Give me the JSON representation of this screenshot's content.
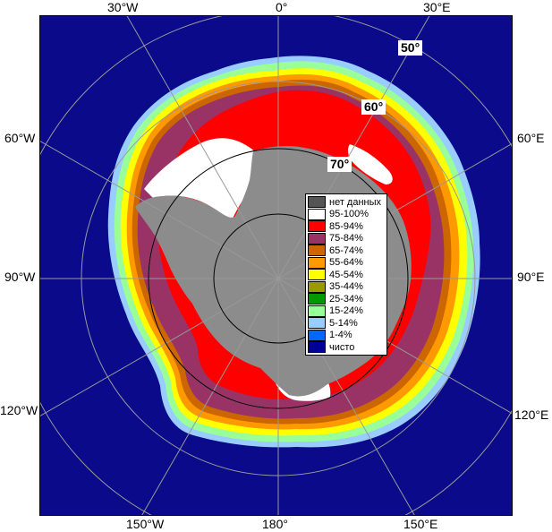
{
  "colors": {
    "ocean": "#0a0a8a",
    "land": "#8c8c8c",
    "grid": "#999999",
    "legend": [
      "#555555",
      "#ffffff",
      "#ff0000",
      "#993366",
      "#cc6600",
      "#ff9900",
      "#ffff00",
      "#999900",
      "#009900",
      "#99ff99",
      "#99ccff",
      "#0066ff",
      "#000099"
    ]
  },
  "longitude_labels": {
    "top_30w": "30°W",
    "top_0": "0°",
    "top_30e": "30°E",
    "left_60w": "60°W",
    "left_90w": "90°W",
    "left_120w": "120°W",
    "right_60e": "60°E",
    "right_90e": "90°E",
    "right_120e": "120°E",
    "bottom_150w": "150°W",
    "bottom_180": "180°",
    "bottom_150e": "150°E"
  },
  "latitude_labels": {
    "lat50": "50°",
    "lat60": "60°",
    "lat70": "70°"
  },
  "legend": {
    "items": [
      {
        "label": "нет данных",
        "color": "#555555"
      },
      {
        "label": "95-100%",
        "color": "#ffffff"
      },
      {
        "label": "85-94%",
        "color": "#ff0000"
      },
      {
        "label": "75-84%",
        "color": "#993366"
      },
      {
        "label": "65-74%",
        "color": "#cc6600"
      },
      {
        "label": "55-64%",
        "color": "#ff9900"
      },
      {
        "label": "45-54%",
        "color": "#ffff00"
      },
      {
        "label": "35-44%",
        "color": "#999900"
      },
      {
        "label": "25-34%",
        "color": "#009900"
      },
      {
        "label": "15-24%",
        "color": "#99ff99"
      },
      {
        "label": "5-14%",
        "color": "#99ccff"
      },
      {
        "label": "1-4%",
        "color": "#0066ff"
      },
      {
        "label": "чисто",
        "color": "#000099"
      }
    ]
  }
}
